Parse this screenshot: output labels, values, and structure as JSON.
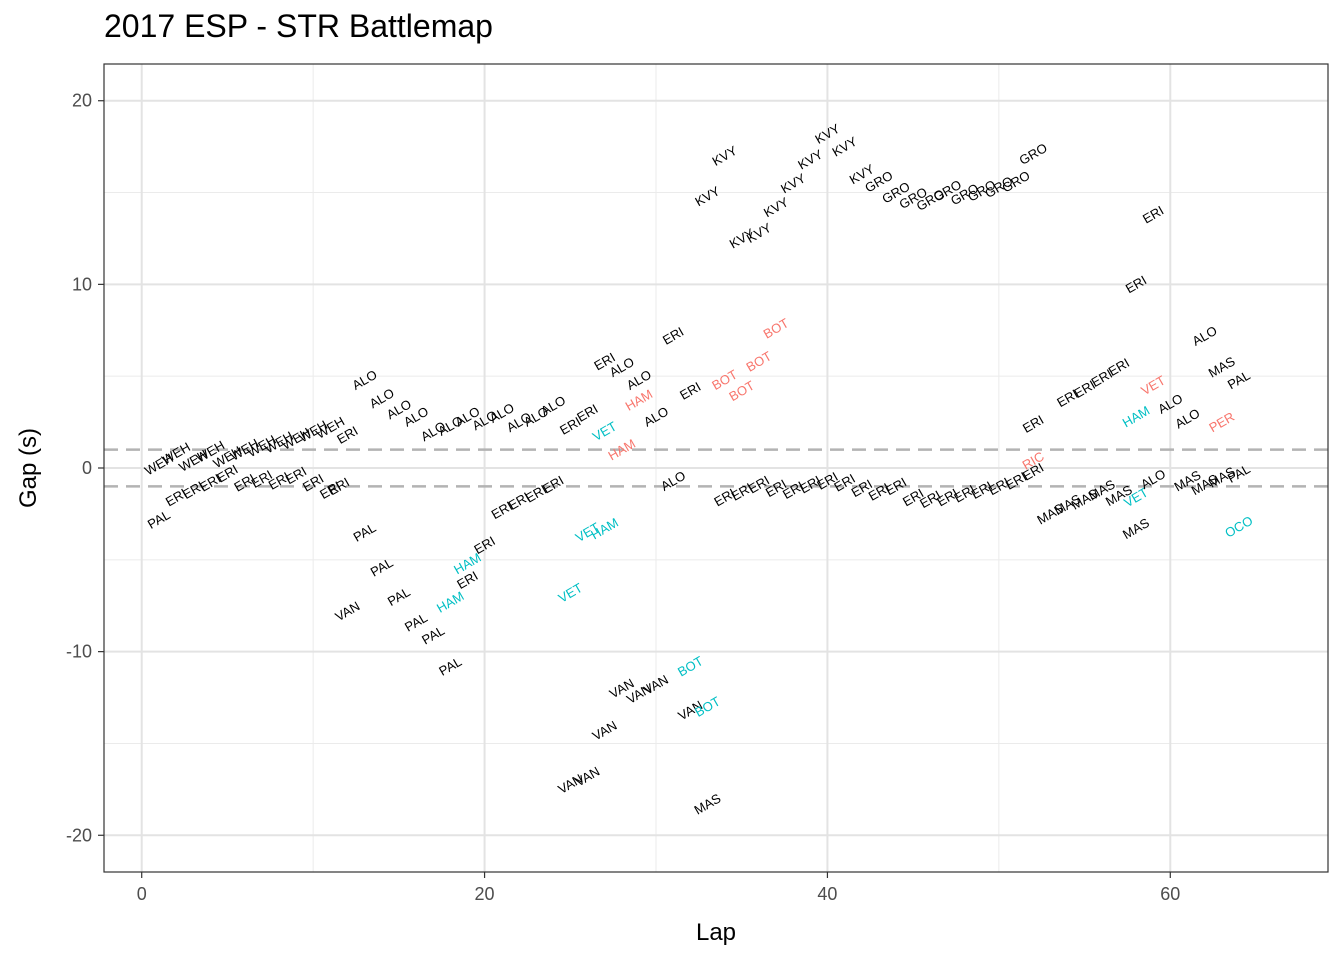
{
  "chart_data": {
    "type": "scatter",
    "title": "2017 ESP - STR Battlemap",
    "xlabel": "Lap",
    "ylabel": "Gap (s)",
    "xlim": [
      -2.2,
      69.2
    ],
    "ylim": [
      -22,
      22
    ],
    "x_ticks": [
      0,
      20,
      40,
      60
    ],
    "y_ticks": [
      -20,
      -10,
      0,
      10,
      20
    ],
    "reference_lines": [
      1,
      -1
    ],
    "grid": true,
    "legend": "none",
    "colors": {
      "black": "#000000",
      "cyan": "#00BFC4",
      "red": "#F8766D"
    },
    "points": [
      {
        "x": 1,
        "y": 0.2,
        "label": "WEH",
        "color": "black"
      },
      {
        "x": 2,
        "y": 0.8,
        "label": "WEH",
        "color": "black"
      },
      {
        "x": 3,
        "y": 0.4,
        "label": "WEH",
        "color": "black"
      },
      {
        "x": 4,
        "y": 0.9,
        "label": "WEH",
        "color": "black"
      },
      {
        "x": 5,
        "y": 0.6,
        "label": "WEH",
        "color": "black"
      },
      {
        "x": 6,
        "y": 1.0,
        "label": "WEH",
        "color": "black"
      },
      {
        "x": 7,
        "y": 1.2,
        "label": "WEH",
        "color": "black"
      },
      {
        "x": 8,
        "y": 1.4,
        "label": "WEH",
        "color": "black"
      },
      {
        "x": 9,
        "y": 1.6,
        "label": "WEH",
        "color": "black"
      },
      {
        "x": 10,
        "y": 2.0,
        "label": "WEH",
        "color": "black"
      },
      {
        "x": 11,
        "y": 2.2,
        "label": "WEH",
        "color": "black"
      },
      {
        "x": 12,
        "y": 1.8,
        "label": "ERI",
        "color": "black"
      },
      {
        "x": 13,
        "y": 4.8,
        "label": "ALO",
        "color": "black"
      },
      {
        "x": 14,
        "y": 3.8,
        "label": "ALO",
        "color": "black"
      },
      {
        "x": 15,
        "y": 3.2,
        "label": "ALO",
        "color": "black"
      },
      {
        "x": 16,
        "y": 2.8,
        "label": "ALO",
        "color": "black"
      },
      {
        "x": 17,
        "y": 2.0,
        "label": "ALO",
        "color": "black"
      },
      {
        "x": 18,
        "y": 2.3,
        "label": "ALO",
        "color": "black"
      },
      {
        "x": 19,
        "y": 2.8,
        "label": "ALO",
        "color": "black"
      },
      {
        "x": 20,
        "y": 2.6,
        "label": "ALO",
        "color": "black"
      },
      {
        "x": 21,
        "y": 3.0,
        "label": "ALO",
        "color": "black"
      },
      {
        "x": 22,
        "y": 2.5,
        "label": "ALO",
        "color": "black"
      },
      {
        "x": 23,
        "y": 2.8,
        "label": "ALO",
        "color": "black"
      },
      {
        "x": 24,
        "y": 3.4,
        "label": "ALO",
        "color": "black"
      },
      {
        "x": 25,
        "y": 2.3,
        "label": "ERI",
        "color": "black"
      },
      {
        "x": 26,
        "y": 3.0,
        "label": "ERI",
        "color": "black"
      },
      {
        "x": 27,
        "y": 5.8,
        "label": "ERI",
        "color": "black"
      },
      {
        "x": 28,
        "y": 5.5,
        "label": "ALO",
        "color": "black"
      },
      {
        "x": 29,
        "y": 4.8,
        "label": "ALO",
        "color": "black"
      },
      {
        "x": 30,
        "y": 2.8,
        "label": "ALO",
        "color": "black"
      },
      {
        "x": 31,
        "y": 7.2,
        "label": "ERI",
        "color": "black"
      },
      {
        "x": 32,
        "y": 4.2,
        "label": "ERI",
        "color": "black"
      },
      {
        "x": 1,
        "y": -2.8,
        "label": "PAL",
        "color": "black"
      },
      {
        "x": 2,
        "y": -1.6,
        "label": "ERI",
        "color": "black"
      },
      {
        "x": 3,
        "y": -1.2,
        "label": "ERI",
        "color": "black"
      },
      {
        "x": 4,
        "y": -0.8,
        "label": "ERI",
        "color": "black"
      },
      {
        "x": 5,
        "y": -0.3,
        "label": "ERI",
        "color": "black"
      },
      {
        "x": 6,
        "y": -0.8,
        "label": "ERI",
        "color": "black"
      },
      {
        "x": 7,
        "y": -0.6,
        "label": "ERI",
        "color": "black"
      },
      {
        "x": 8,
        "y": -0.7,
        "label": "ERI",
        "color": "black"
      },
      {
        "x": 9,
        "y": -0.4,
        "label": "ERI",
        "color": "black"
      },
      {
        "x": 10,
        "y": -0.8,
        "label": "ERI",
        "color": "black"
      },
      {
        "x": 11,
        "y": -1.2,
        "label": "ERI",
        "color": "black"
      },
      {
        "x": 11.5,
        "y": -1.0,
        "label": "ERI",
        "color": "black"
      },
      {
        "x": 13,
        "y": -3.5,
        "label": "PAL",
        "color": "black"
      },
      {
        "x": 14,
        "y": -5.4,
        "label": "PAL",
        "color": "black"
      },
      {
        "x": 15,
        "y": -7.0,
        "label": "PAL",
        "color": "black"
      },
      {
        "x": 16,
        "y": -8.4,
        "label": "PAL",
        "color": "black"
      },
      {
        "x": 17,
        "y": -9.1,
        "label": "PAL",
        "color": "black"
      },
      {
        "x": 18,
        "y": -10.8,
        "label": "PAL",
        "color": "black"
      },
      {
        "x": 12,
        "y": -7.8,
        "label": "VAN",
        "color": "black"
      },
      {
        "x": 19,
        "y": -5.2,
        "label": "HAM",
        "color": "cyan"
      },
      {
        "x": 18,
        "y": -7.3,
        "label": "HAM",
        "color": "cyan"
      },
      {
        "x": 19,
        "y": -6.1,
        "label": "ERI",
        "color": "black"
      },
      {
        "x": 20,
        "y": -4.2,
        "label": "ERI",
        "color": "black"
      },
      {
        "x": 21,
        "y": -2.3,
        "label": "ERI",
        "color": "black"
      },
      {
        "x": 22,
        "y": -1.8,
        "label": "ERI",
        "color": "black"
      },
      {
        "x": 23,
        "y": -1.4,
        "label": "ERI",
        "color": "black"
      },
      {
        "x": 24,
        "y": -0.9,
        "label": "ERI",
        "color": "black"
      },
      {
        "x": 25,
        "y": -6.8,
        "label": "VET",
        "color": "cyan"
      },
      {
        "x": 26,
        "y": -3.5,
        "label": "VET",
        "color": "cyan"
      },
      {
        "x": 27,
        "y": -3.3,
        "label": "HAM",
        "color": "cyan"
      },
      {
        "x": 27,
        "y": 2.0,
        "label": "VET",
        "color": "cyan"
      },
      {
        "x": 28,
        "y": 1.0,
        "label": "HAM",
        "color": "red"
      },
      {
        "x": 29,
        "y": 3.7,
        "label": "HAM",
        "color": "red"
      },
      {
        "x": 31,
        "y": -0.7,
        "label": "ALO",
        "color": "black"
      },
      {
        "x": 25,
        "y": -17.2,
        "label": "VAN",
        "color": "black"
      },
      {
        "x": 26,
        "y": -16.8,
        "label": "VAN",
        "color": "black"
      },
      {
        "x": 27,
        "y": -14.3,
        "label": "VAN",
        "color": "black"
      },
      {
        "x": 28,
        "y": -12.0,
        "label": "VAN",
        "color": "black"
      },
      {
        "x": 29,
        "y": -12.3,
        "label": "VAN",
        "color": "black"
      },
      {
        "x": 30,
        "y": -11.8,
        "label": "VAN",
        "color": "black"
      },
      {
        "x": 32,
        "y": -10.8,
        "label": "BOT",
        "color": "cyan"
      },
      {
        "x": 32,
        "y": -13.2,
        "label": "VAN",
        "color": "black"
      },
      {
        "x": 33,
        "y": -13.0,
        "label": "BOT",
        "color": "cyan"
      },
      {
        "x": 33,
        "y": -18.3,
        "label": "MAS",
        "color": "black"
      },
      {
        "x": 33,
        "y": 14.8,
        "label": "KVY",
        "color": "black"
      },
      {
        "x": 34,
        "y": 17.0,
        "label": "KVY",
        "color": "black"
      },
      {
        "x": 35,
        "y": 12.5,
        "label": "KVY",
        "color": "black"
      },
      {
        "x": 36,
        "y": 12.8,
        "label": "KVY",
        "color": "black"
      },
      {
        "x": 37,
        "y": 14.2,
        "label": "KVY",
        "color": "black"
      },
      {
        "x": 38,
        "y": 15.5,
        "label": "KVY",
        "color": "black"
      },
      {
        "x": 39,
        "y": 16.8,
        "label": "KVY",
        "color": "black"
      },
      {
        "x": 40,
        "y": 18.2,
        "label": "KVY",
        "color": "black"
      },
      {
        "x": 41,
        "y": 17.5,
        "label": "KVY",
        "color": "black"
      },
      {
        "x": 42,
        "y": 16.0,
        "label": "KVY",
        "color": "black"
      },
      {
        "x": 43,
        "y": 15.6,
        "label": "GRO",
        "color": "black"
      },
      {
        "x": 44,
        "y": 15.0,
        "label": "GRO",
        "color": "black"
      },
      {
        "x": 45,
        "y": 14.7,
        "label": "GRO",
        "color": "black"
      },
      {
        "x": 46,
        "y": 14.6,
        "label": "GRO",
        "color": "black"
      },
      {
        "x": 47,
        "y": 15.1,
        "label": "GRO",
        "color": "black"
      },
      {
        "x": 48,
        "y": 14.9,
        "label": "GRO",
        "color": "black"
      },
      {
        "x": 49,
        "y": 15.1,
        "label": "GRO",
        "color": "black"
      },
      {
        "x": 50,
        "y": 15.3,
        "label": "GRO",
        "color": "black"
      },
      {
        "x": 51,
        "y": 15.6,
        "label": "GRO",
        "color": "black"
      },
      {
        "x": 52,
        "y": 17.1,
        "label": "GRO",
        "color": "black"
      },
      {
        "x": 34,
        "y": 4.8,
        "label": "BOT",
        "color": "red"
      },
      {
        "x": 35,
        "y": 4.2,
        "label": "BOT",
        "color": "red"
      },
      {
        "x": 36,
        "y": 5.8,
        "label": "BOT",
        "color": "red"
      },
      {
        "x": 37,
        "y": 7.6,
        "label": "BOT",
        "color": "red"
      },
      {
        "x": 34,
        "y": -1.6,
        "label": "ERI",
        "color": "black"
      },
      {
        "x": 35,
        "y": -1.3,
        "label": "ERI",
        "color": "black"
      },
      {
        "x": 36,
        "y": -0.9,
        "label": "ERI",
        "color": "black"
      },
      {
        "x": 37,
        "y": -1.1,
        "label": "ERI",
        "color": "black"
      },
      {
        "x": 38,
        "y": -1.2,
        "label": "ERI",
        "color": "black"
      },
      {
        "x": 39,
        "y": -0.9,
        "label": "ERI",
        "color": "black"
      },
      {
        "x": 40,
        "y": -0.7,
        "label": "ERI",
        "color": "black"
      },
      {
        "x": 41,
        "y": -0.8,
        "label": "ERI",
        "color": "black"
      },
      {
        "x": 42,
        "y": -1.1,
        "label": "ERI",
        "color": "black"
      },
      {
        "x": 43,
        "y": -1.3,
        "label": "ERI",
        "color": "black"
      },
      {
        "x": 44,
        "y": -1.0,
        "label": "ERI",
        "color": "black"
      },
      {
        "x": 45,
        "y": -1.6,
        "label": "ERI",
        "color": "black"
      },
      {
        "x": 46,
        "y": -1.7,
        "label": "ERI",
        "color": "black"
      },
      {
        "x": 47,
        "y": -1.6,
        "label": "ERI",
        "color": "black"
      },
      {
        "x": 48,
        "y": -1.4,
        "label": "ERI",
        "color": "black"
      },
      {
        "x": 49,
        "y": -1.2,
        "label": "ERI",
        "color": "black"
      },
      {
        "x": 50,
        "y": -1.0,
        "label": "ERI",
        "color": "black"
      },
      {
        "x": 51,
        "y": -0.7,
        "label": "ERI",
        "color": "black"
      },
      {
        "x": 52,
        "y": 0.4,
        "label": "RIC",
        "color": "red"
      },
      {
        "x": 52,
        "y": 2.4,
        "label": "ERI",
        "color": "black"
      },
      {
        "x": 52,
        "y": -0.2,
        "label": "ERI",
        "color": "black"
      },
      {
        "x": 53,
        "y": -2.5,
        "label": "MAS",
        "color": "black"
      },
      {
        "x": 54,
        "y": -2.0,
        "label": "MAS",
        "color": "black"
      },
      {
        "x": 55,
        "y": -1.7,
        "label": "MAS",
        "color": "black"
      },
      {
        "x": 56,
        "y": -1.2,
        "label": "MAS",
        "color": "black"
      },
      {
        "x": 57,
        "y": -1.5,
        "label": "MAS",
        "color": "black"
      },
      {
        "x": 54,
        "y": 3.8,
        "label": "ERI",
        "color": "black"
      },
      {
        "x": 55,
        "y": 4.3,
        "label": "ERI",
        "color": "black"
      },
      {
        "x": 56,
        "y": 4.9,
        "label": "ERI",
        "color": "black"
      },
      {
        "x": 57,
        "y": 5.5,
        "label": "ERI",
        "color": "black"
      },
      {
        "x": 58,
        "y": 10.0,
        "label": "ERI",
        "color": "black"
      },
      {
        "x": 59,
        "y": 13.8,
        "label": "ERI",
        "color": "black"
      },
      {
        "x": 58,
        "y": 2.8,
        "label": "HAM",
        "color": "cyan"
      },
      {
        "x": 59,
        "y": 4.5,
        "label": "VET",
        "color": "red"
      },
      {
        "x": 58,
        "y": -1.6,
        "label": "VET",
        "color": "cyan"
      },
      {
        "x": 59,
        "y": -0.6,
        "label": "ALO",
        "color": "black"
      },
      {
        "x": 58,
        "y": -3.3,
        "label": "MAS",
        "color": "black"
      },
      {
        "x": 60,
        "y": 3.5,
        "label": "ALO",
        "color": "black"
      },
      {
        "x": 61,
        "y": 2.7,
        "label": "ALO",
        "color": "black"
      },
      {
        "x": 61,
        "y": -0.7,
        "label": "MAS",
        "color": "black"
      },
      {
        "x": 62,
        "y": -0.9,
        "label": "MAS",
        "color": "black"
      },
      {
        "x": 62,
        "y": 7.2,
        "label": "ALO",
        "color": "black"
      },
      {
        "x": 63,
        "y": 5.5,
        "label": "MAS",
        "color": "black"
      },
      {
        "x": 63,
        "y": -0.5,
        "label": "MAS",
        "color": "black"
      },
      {
        "x": 64,
        "y": -0.3,
        "label": "PAL",
        "color": "black"
      },
      {
        "x": 64,
        "y": 4.8,
        "label": "PAL",
        "color": "black"
      },
      {
        "x": 63,
        "y": 2.5,
        "label": "PER",
        "color": "red"
      },
      {
        "x": 64,
        "y": -3.2,
        "label": "OCO",
        "color": "cyan"
      }
    ]
  }
}
